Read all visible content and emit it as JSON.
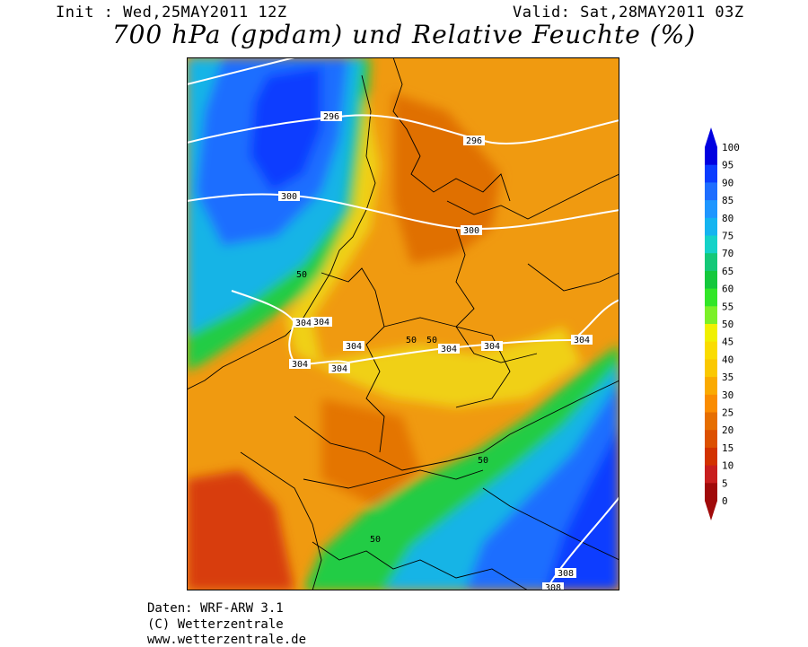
{
  "header": {
    "init": "Init : Wed,25MAY2011 12Z",
    "valid": "Valid: Sat,28MAY2011 03Z",
    "title": "700 hPa (gpdam) und Relative Feuchte (%)"
  },
  "footer": {
    "line1": "Daten: WRF-ARW 3.1",
    "line2": "(C) Wetterzentrale",
    "line3": "www.wetterzentrale.de"
  },
  "legend": {
    "labels": [
      "100",
      "95",
      "90",
      "85",
      "80",
      "75",
      "70",
      "65",
      "60",
      "55",
      "50",
      "45",
      "40",
      "35",
      "30",
      "25",
      "20",
      "15",
      "10",
      "5",
      "0"
    ],
    "colors": [
      "#0000e0",
      "#0a3cff",
      "#1e6eff",
      "#1e96ff",
      "#14b4f0",
      "#14d2c8",
      "#14c878",
      "#14c83c",
      "#32e628",
      "#7cf028",
      "#f0f000",
      "#fadc00",
      "#fac800",
      "#faaa00",
      "#fa8c00",
      "#e66e00",
      "#dc5000",
      "#d23200",
      "#c81e1e",
      "#a00a0a"
    ]
  },
  "contours": {
    "geopotential_labels": [
      "296",
      "296",
      "300",
      "300",
      "304",
      "304",
      "304",
      "304",
      "304",
      "304",
      "304",
      "304",
      "308",
      "308"
    ],
    "humidity_labels": [
      "50",
      "50",
      "50",
      "50",
      "50"
    ]
  }
}
